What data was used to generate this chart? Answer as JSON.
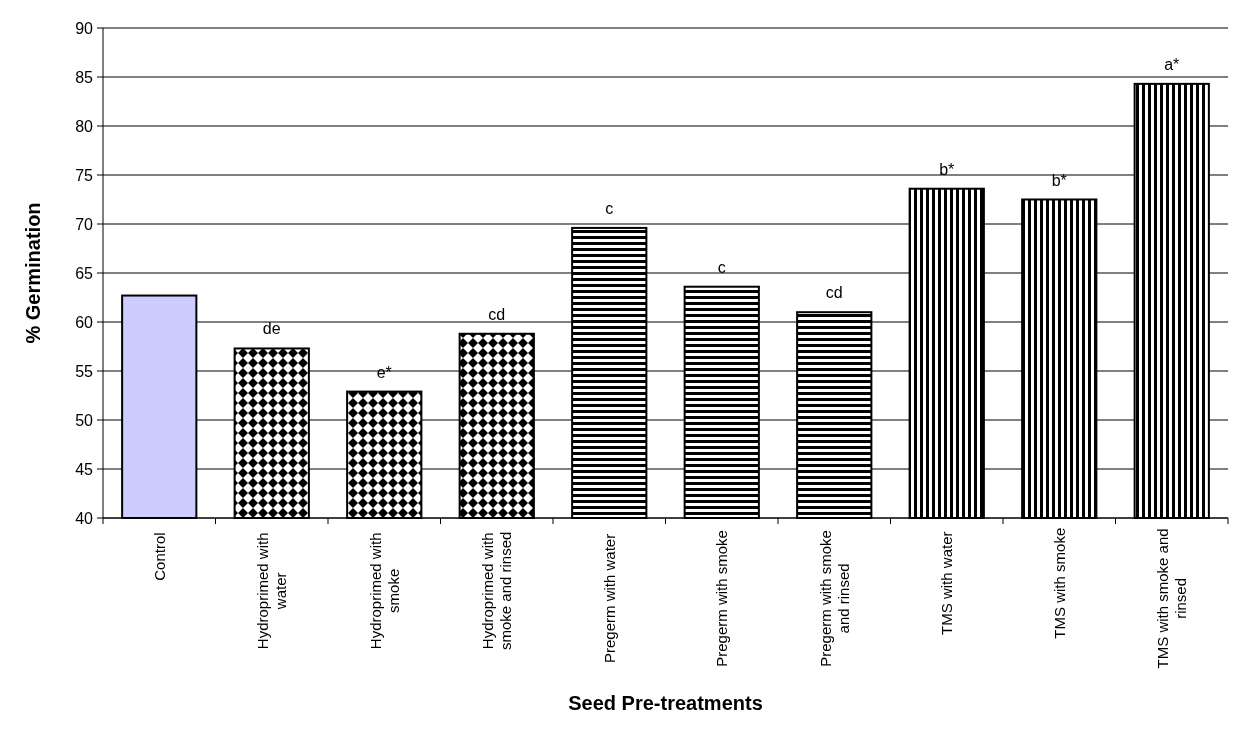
{
  "chart_data": {
    "type": "bar",
    "xlabel": "Seed Pre-treatments",
    "ylabel": "% Germination",
    "categories": [
      "Control",
      "Hydroprimed with water",
      "Hydroprimed with smoke",
      "Hydroprimed with smoke and rinsed",
      "Pregerm with water",
      "Pregerm with smoke",
      "Pregerm with smoke and rinsed",
      "TMS with water",
      "TMS with smoke",
      "TMS with smoke and rinsed"
    ],
    "values": [
      62.7,
      57.3,
      52.9,
      58.8,
      69.6,
      63.6,
      61.0,
      73.6,
      72.5,
      84.3
    ],
    "colors": [
      "#ccccff",
      "#000000",
      "#000000",
      "#000000",
      "#000000",
      "#000000",
      "#000000",
      "#000000",
      "#000000",
      "#000000"
    ],
    "ylim": [
      40,
      90
    ],
    "yticks": [
      40,
      45,
      50,
      55,
      60,
      65,
      70,
      75,
      80,
      85,
      90
    ],
    "grid": "y",
    "annotations": [
      {
        "text": "de",
        "x": "Hydroprimed with water",
        "y": 57.3
      },
      {
        "text": "e*",
        "x": "Hydroprimed with smoke",
        "y": 52.9
      },
      {
        "text": "cd",
        "x": "Hydroprimed with smoke and rinsed",
        "y": 58.8
      },
      {
        "text": "c",
        "x": "Pregerm with water",
        "y": 69.6
      },
      {
        "text": "c",
        "x": "Pregerm with smoke",
        "y": 63.6
      },
      {
        "text": "cd",
        "x": "Pregerm with smoke and rinsed",
        "y": 61.0
      },
      {
        "text": "b*",
        "x": "TMS with water",
        "y": 73.6
      },
      {
        "text": "b*",
        "x": "TMS with smoke",
        "y": 72.5
      },
      {
        "text": "a*",
        "x": "TMS with smoke and rinsed",
        "y": 84.3
      }
    ]
  }
}
